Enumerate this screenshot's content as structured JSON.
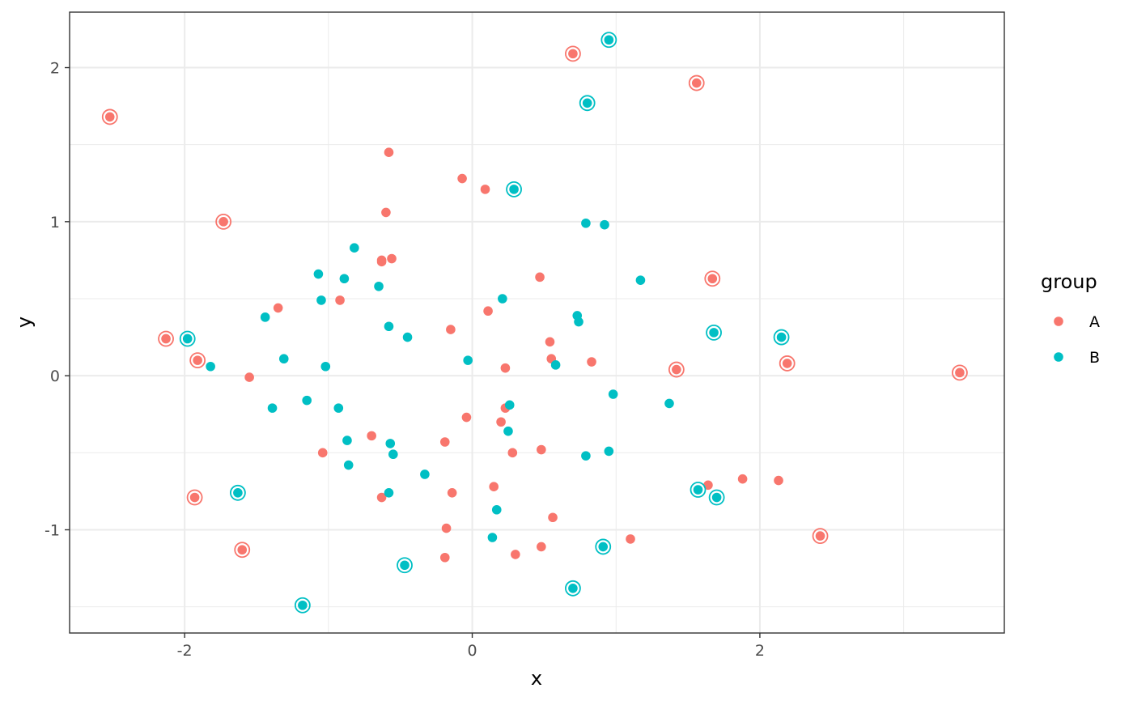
{
  "chart_data": {
    "type": "scatter",
    "xlabel": "x",
    "ylabel": "y",
    "xlim": [
      -2.8,
      3.7
    ],
    "ylim": [
      -1.67,
      2.36
    ],
    "x_ticks": [
      -2,
      0,
      2
    ],
    "x_tick_labels": [
      "-2",
      "0",
      "2"
    ],
    "y_ticks": [
      -1,
      0,
      1,
      2
    ],
    "y_tick_labels": [
      "-1",
      "0",
      "1",
      "2"
    ],
    "grid": true,
    "legend": {
      "title": "group",
      "position": "right",
      "entries": [
        {
          "label": "A",
          "color": "#F8766D"
        },
        {
          "label": "B",
          "color": "#00BFC4"
        }
      ]
    },
    "series": [
      {
        "name": "A",
        "color": "#F8766D",
        "points": [
          [
            -2.52,
            1.68,
            true
          ],
          [
            -1.73,
            1.0,
            true
          ],
          [
            -2.13,
            0.24,
            true
          ],
          [
            -1.91,
            0.1,
            true
          ],
          [
            -1.93,
            -0.79,
            true
          ],
          [
            -1.6,
            -1.13,
            true
          ],
          [
            0.7,
            2.09,
            true
          ],
          [
            1.56,
            1.9,
            true
          ],
          [
            1.67,
            0.63,
            true
          ],
          [
            1.42,
            0.04,
            true
          ],
          [
            2.19,
            0.08,
            true
          ],
          [
            3.39,
            0.02,
            true
          ],
          [
            2.42,
            -1.04,
            true
          ],
          [
            -0.58,
            1.45,
            false
          ],
          [
            -0.07,
            1.28,
            false
          ],
          [
            0.09,
            1.21,
            false
          ],
          [
            -0.6,
            1.06,
            false
          ],
          [
            -0.63,
            0.75,
            false
          ],
          [
            -0.56,
            0.76,
            false
          ],
          [
            -0.63,
            0.74,
            false
          ],
          [
            0.47,
            0.64,
            false
          ],
          [
            -1.35,
            0.44,
            false
          ],
          [
            -0.92,
            0.49,
            false
          ],
          [
            0.11,
            0.42,
            false
          ],
          [
            -0.15,
            0.3,
            false
          ],
          [
            0.54,
            0.22,
            false
          ],
          [
            0.55,
            0.11,
            false
          ],
          [
            0.83,
            0.09,
            false
          ],
          [
            0.23,
            0.05,
            false
          ],
          [
            -1.55,
            -0.01,
            false
          ],
          [
            -0.04,
            -0.27,
            false
          ],
          [
            0.2,
            -0.3,
            false
          ],
          [
            0.23,
            -0.21,
            false
          ],
          [
            -0.7,
            -0.39,
            false
          ],
          [
            -0.19,
            -0.43,
            false
          ],
          [
            0.48,
            -0.48,
            false
          ],
          [
            -1.04,
            -0.5,
            false
          ],
          [
            0.28,
            -0.5,
            false
          ],
          [
            0.15,
            -0.72,
            false
          ],
          [
            -0.14,
            -0.76,
            false
          ],
          [
            -0.63,
            -0.79,
            false
          ],
          [
            1.64,
            -0.71,
            false
          ],
          [
            1.88,
            -0.67,
            false
          ],
          [
            2.13,
            -0.68,
            false
          ],
          [
            0.56,
            -0.92,
            false
          ],
          [
            -0.18,
            -0.99,
            false
          ],
          [
            1.1,
            -1.06,
            false
          ],
          [
            0.48,
            -1.11,
            false
          ],
          [
            0.3,
            -1.16,
            false
          ],
          [
            -0.19,
            -1.18,
            false
          ]
        ]
      },
      {
        "name": "B",
        "color": "#00BFC4",
        "points": [
          [
            0.95,
            2.18,
            true
          ],
          [
            0.8,
            1.77,
            true
          ],
          [
            0.29,
            1.21,
            true
          ],
          [
            -1.98,
            0.24,
            true
          ],
          [
            1.68,
            0.28,
            true
          ],
          [
            2.15,
            0.25,
            true
          ],
          [
            -1.63,
            -0.76,
            true
          ],
          [
            1.57,
            -0.74,
            true
          ],
          [
            1.7,
            -0.79,
            true
          ],
          [
            0.91,
            -1.11,
            true
          ],
          [
            -0.47,
            -1.23,
            true
          ],
          [
            0.7,
            -1.38,
            true
          ],
          [
            -1.18,
            -1.49,
            true
          ],
          [
            0.79,
            0.99,
            false
          ],
          [
            0.92,
            0.98,
            false
          ],
          [
            -0.82,
            0.83,
            false
          ],
          [
            -1.07,
            0.66,
            false
          ],
          [
            -0.89,
            0.63,
            false
          ],
          [
            1.17,
            0.62,
            false
          ],
          [
            -0.65,
            0.58,
            false
          ],
          [
            -1.05,
            0.49,
            false
          ],
          [
            0.21,
            0.5,
            false
          ],
          [
            0.73,
            0.39,
            false
          ],
          [
            0.74,
            0.35,
            false
          ],
          [
            -1.44,
            0.38,
            false
          ],
          [
            -0.58,
            0.32,
            false
          ],
          [
            -0.45,
            0.25,
            false
          ],
          [
            -1.31,
            0.11,
            false
          ],
          [
            -0.03,
            0.1,
            false
          ],
          [
            0.58,
            0.07,
            false
          ],
          [
            -1.82,
            0.06,
            false
          ],
          [
            -1.02,
            0.06,
            false
          ],
          [
            0.98,
            -0.12,
            false
          ],
          [
            -1.15,
            -0.16,
            false
          ],
          [
            1.37,
            -0.18,
            false
          ],
          [
            0.26,
            -0.19,
            false
          ],
          [
            -1.39,
            -0.21,
            false
          ],
          [
            -0.93,
            -0.21,
            false
          ],
          [
            0.25,
            -0.36,
            false
          ],
          [
            -0.87,
            -0.42,
            false
          ],
          [
            -0.57,
            -0.44,
            false
          ],
          [
            -0.55,
            -0.51,
            false
          ],
          [
            0.95,
            -0.49,
            false
          ],
          [
            0.79,
            -0.52,
            false
          ],
          [
            -0.86,
            -0.58,
            false
          ],
          [
            -0.33,
            -0.64,
            false
          ],
          [
            -0.58,
            -0.76,
            false
          ],
          [
            0.17,
            -0.87,
            false
          ],
          [
            0.14,
            -1.05,
            false
          ]
        ]
      }
    ]
  }
}
